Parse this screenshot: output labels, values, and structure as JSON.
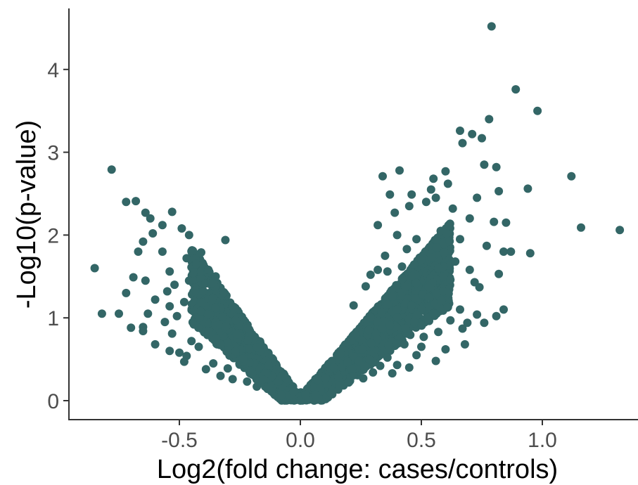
{
  "chart_data": {
    "type": "scatter",
    "title": "",
    "xlabel": "Log2(fold change: cases/controls)",
    "ylabel": "-Log10(p-value)",
    "xlim": [
      -0.96,
      1.38
    ],
    "ylim": [
      -0.2,
      4.7
    ],
    "x_ticks": [
      {
        "value": -0.5,
        "label": "-0.5"
      },
      {
        "value": 0.0,
        "label": "0.0"
      },
      {
        "value": 0.5,
        "label": "0.5"
      },
      {
        "value": 1.0,
        "label": "1.0"
      }
    ],
    "y_ticks": [
      {
        "value": 0,
        "label": "0"
      },
      {
        "value": 1,
        "label": "1"
      },
      {
        "value": 2,
        "label": "2"
      },
      {
        "value": 3,
        "label": "3"
      },
      {
        "value": 4,
        "label": "4"
      }
    ],
    "grid": false,
    "legend": "none",
    "point_color": "#336666",
    "dense_region_note_free": true,
    "points": [
      [
        0.79,
        4.52
      ],
      [
        0.89,
        3.76
      ],
      [
        0.98,
        3.5
      ],
      [
        0.78,
        3.4
      ],
      [
        0.66,
        3.26
      ],
      [
        0.71,
        3.22
      ],
      [
        0.75,
        3.17
      ],
      [
        0.67,
        3.11
      ],
      [
        0.76,
        2.85
      ],
      [
        0.81,
        2.82
      ],
      [
        -0.78,
        2.79
      ],
      [
        0.41,
        2.78
      ],
      [
        0.34,
        2.71
      ],
      [
        0.6,
        2.77
      ],
      [
        0.55,
        2.68
      ],
      [
        1.12,
        2.71
      ],
      [
        0.94,
        2.56
      ],
      [
        0.82,
        2.53
      ],
      [
        0.37,
        2.49
      ],
      [
        0.46,
        2.49
      ],
      [
        0.73,
        2.45
      ],
      [
        0.56,
        2.45
      ],
      [
        -0.72,
        2.4
      ],
      [
        -0.68,
        2.41
      ],
      [
        -0.64,
        2.27
      ],
      [
        -0.53,
        2.28
      ],
      [
        -0.62,
        2.2
      ],
      [
        -0.57,
        2.12
      ],
      [
        -0.49,
        2.08
      ],
      [
        0.8,
        2.16
      ],
      [
        0.85,
        2.15
      ],
      [
        1.16,
        2.09
      ],
      [
        1.32,
        2.06
      ],
      [
        -0.46,
        2.0
      ],
      [
        -0.61,
        2.02
      ],
      [
        -0.65,
        1.92
      ],
      [
        -0.31,
        1.94
      ],
      [
        0.77,
        1.87
      ],
      [
        -0.57,
        1.8
      ],
      [
        -0.67,
        1.8
      ],
      [
        0.87,
        1.8
      ],
      [
        0.95,
        1.78
      ],
      [
        0.84,
        1.8
      ],
      [
        -0.47,
        1.72
      ],
      [
        -0.41,
        1.79
      ],
      [
        -0.85,
        1.6
      ],
      [
        -0.54,
        1.56
      ],
      [
        -0.69,
        1.49
      ],
      [
        -0.64,
        1.45
      ],
      [
        0.82,
        1.53
      ],
      [
        0.72,
        1.43
      ],
      [
        0.62,
        1.46
      ],
      [
        0.74,
        1.37
      ],
      [
        -0.55,
        1.32
      ],
      [
        -0.72,
        1.3
      ],
      [
        -0.6,
        1.22
      ],
      [
        -0.48,
        1.19
      ],
      [
        -0.54,
        1.14
      ],
      [
        0.61,
        1.13
      ],
      [
        0.66,
        1.1
      ],
      [
        0.84,
        1.1
      ],
      [
        0.73,
        1.04
      ],
      [
        -0.82,
        1.05
      ],
      [
        -0.75,
        1.05
      ],
      [
        -0.63,
        1.05
      ],
      [
        -0.51,
        1.02
      ],
      [
        0.69,
        0.94
      ],
      [
        0.76,
        0.94
      ],
      [
        0.81,
        1.02
      ],
      [
        -0.7,
        0.88
      ],
      [
        -0.65,
        0.89
      ],
      [
        -0.65,
        0.84
      ],
      [
        0.57,
        0.83
      ],
      [
        0.67,
        0.87
      ],
      [
        -0.53,
        0.81
      ],
      [
        0.51,
        0.77
      ],
      [
        -0.6,
        0.68
      ],
      [
        0.6,
        0.62
      ],
      [
        0.68,
        0.68
      ],
      [
        -0.54,
        0.6
      ],
      [
        -0.5,
        0.58
      ],
      [
        -0.47,
        0.54
      ],
      [
        -0.48,
        0.47
      ],
      [
        0.48,
        0.55
      ],
      [
        0.56,
        0.48
      ],
      [
        0.4,
        0.43
      ],
      [
        -0.33,
        0.3
      ],
      [
        0.3,
        0.34
      ],
      [
        0.38,
        0.33
      ],
      [
        -0.28,
        0.26
      ],
      [
        0.26,
        0.27
      ],
      [
        -0.22,
        0.23
      ],
      [
        0.2,
        0.22
      ],
      [
        -0.18,
        0.17
      ],
      [
        0.16,
        0.18
      ],
      [
        0.32,
        2.12
      ],
      [
        0.45,
        2.35
      ],
      [
        0.39,
        2.27
      ],
      [
        0.52,
        2.4
      ],
      [
        0.63,
        2.32
      ],
      [
        0.7,
        2.2
      ],
      [
        0.58,
        2.05
      ],
      [
        0.48,
        1.95
      ],
      [
        0.44,
        1.83
      ],
      [
        0.35,
        1.75
      ],
      [
        0.66,
        1.95
      ],
      [
        -0.43,
        1.65
      ],
      [
        -0.38,
        1.58
      ],
      [
        -0.35,
        1.5
      ],
      [
        -0.46,
        1.45
      ],
      [
        -0.4,
        1.32
      ],
      [
        -0.52,
        1.4
      ],
      [
        0.42,
        1.62
      ],
      [
        0.5,
        1.7
      ],
      [
        0.57,
        1.6
      ],
      [
        0.64,
        1.68
      ],
      [
        0.7,
        1.58
      ],
      [
        0.36,
        1.56
      ],
      [
        0.29,
        1.52
      ],
      [
        0.53,
        1.25
      ],
      [
        0.46,
        1.15
      ],
      [
        0.59,
        1.32
      ],
      [
        0.47,
        0.95
      ],
      [
        0.55,
        1.05
      ],
      [
        0.62,
        0.97
      ],
      [
        -0.44,
        0.92
      ],
      [
        -0.56,
        0.95
      ],
      [
        -0.45,
        0.72
      ],
      [
        -0.42,
        0.65
      ],
      [
        0.43,
        0.68
      ],
      [
        0.5,
        0.65
      ],
      [
        0.36,
        0.52
      ],
      [
        0.45,
        0.4
      ],
      [
        -0.36,
        0.45
      ],
      [
        -0.39,
        0.38
      ],
      [
        -0.3,
        0.39
      ],
      [
        0.24,
        0.48
      ],
      [
        0.33,
        0.42
      ],
      [
        0.27,
        1.38
      ],
      [
        0.32,
        1.58
      ],
      [
        0.22,
        1.15
      ],
      [
        0.4,
        2.0
      ],
      [
        0.54,
        2.55
      ],
      [
        0.61,
        2.62
      ]
    ]
  }
}
